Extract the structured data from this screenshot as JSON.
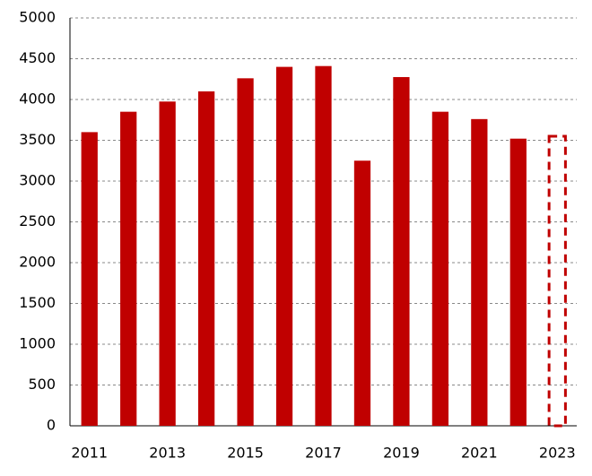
{
  "chart_data": {
    "type": "bar",
    "categories": [
      "2011",
      null,
      "2013",
      null,
      "2015",
      null,
      "2017",
      null,
      "2019",
      null,
      "2021",
      null,
      "2023"
    ],
    "values": [
      3600,
      3850,
      3975,
      4100,
      4260,
      4400,
      4410,
      3250,
      4275,
      3850,
      3760,
      3520,
      3550
    ],
    "dashed": [
      false,
      false,
      false,
      false,
      false,
      false,
      false,
      false,
      false,
      false,
      false,
      false,
      true
    ],
    "color": "#c00000",
    "ylim": [
      0,
      5000
    ],
    "yticks": [
      0,
      500,
      1000,
      1500,
      2000,
      2500,
      3000,
      3500,
      4000,
      4500,
      5000
    ],
    "grid": true
  }
}
